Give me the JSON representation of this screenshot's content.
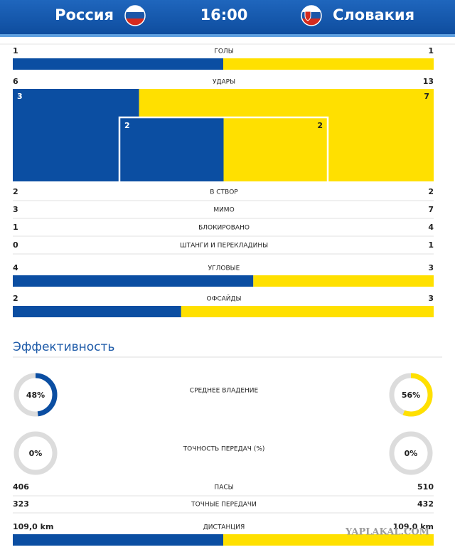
{
  "header": {
    "home": "Россия",
    "time": "16:00",
    "away": "Словакия"
  },
  "colors": {
    "home": "#0b4ea2",
    "away": "#ffe000"
  },
  "stats": [
    {
      "label": "ГОЛЫ",
      "home": 1,
      "away": 1,
      "bar": true
    },
    {
      "label": "УДАРЫ",
      "home": 6,
      "away": 13,
      "outside": {
        "home": 3,
        "away": 7
      },
      "inside": {
        "home": 2,
        "away": 2
      }
    },
    {
      "label": "В СТВОР",
      "home": 2,
      "away": 2
    },
    {
      "label": "МИМО",
      "home": 3,
      "away": 7
    },
    {
      "label": "БЛОКИРОВАНО",
      "home": 1,
      "away": 4
    },
    {
      "label": "ШТАНГИ И ПЕРЕКЛАДИНЫ",
      "home": 0,
      "away": 1
    },
    {
      "label": "УГЛОВЫЕ",
      "home": 4,
      "away": 3,
      "bar": true
    },
    {
      "label": "ОФСАЙДЫ",
      "home": 2,
      "away": 3,
      "bar": true
    }
  ],
  "section_title": "Эффективность",
  "donuts": [
    {
      "label": "СРЕДНЕЕ ВЛАДЕНИЕ",
      "home": {
        "value": 48,
        "label": "48%"
      },
      "away": {
        "value": 56,
        "label": "56%"
      }
    },
    {
      "label": "ТОЧНОСТЬ ПЕРЕДАЧ (%)",
      "home": {
        "value": 0,
        "label": "0%"
      },
      "away": {
        "value": 0,
        "label": "0%"
      }
    }
  ],
  "rows": [
    {
      "label": "ПАСЫ",
      "home": 406,
      "away": 510
    },
    {
      "label": "ТОЧНЫЕ ПЕРЕДАЧИ",
      "home": 323,
      "away": 432
    },
    {
      "label": "ДИСТАНЦИЯ",
      "home": {
        "value": 109.0,
        "label": "109,0 km"
      },
      "away": {
        "value": 109.0,
        "label": "109,0 km"
      },
      "bar": true
    }
  ],
  "watermark": "YAPLAKAL.COM"
}
